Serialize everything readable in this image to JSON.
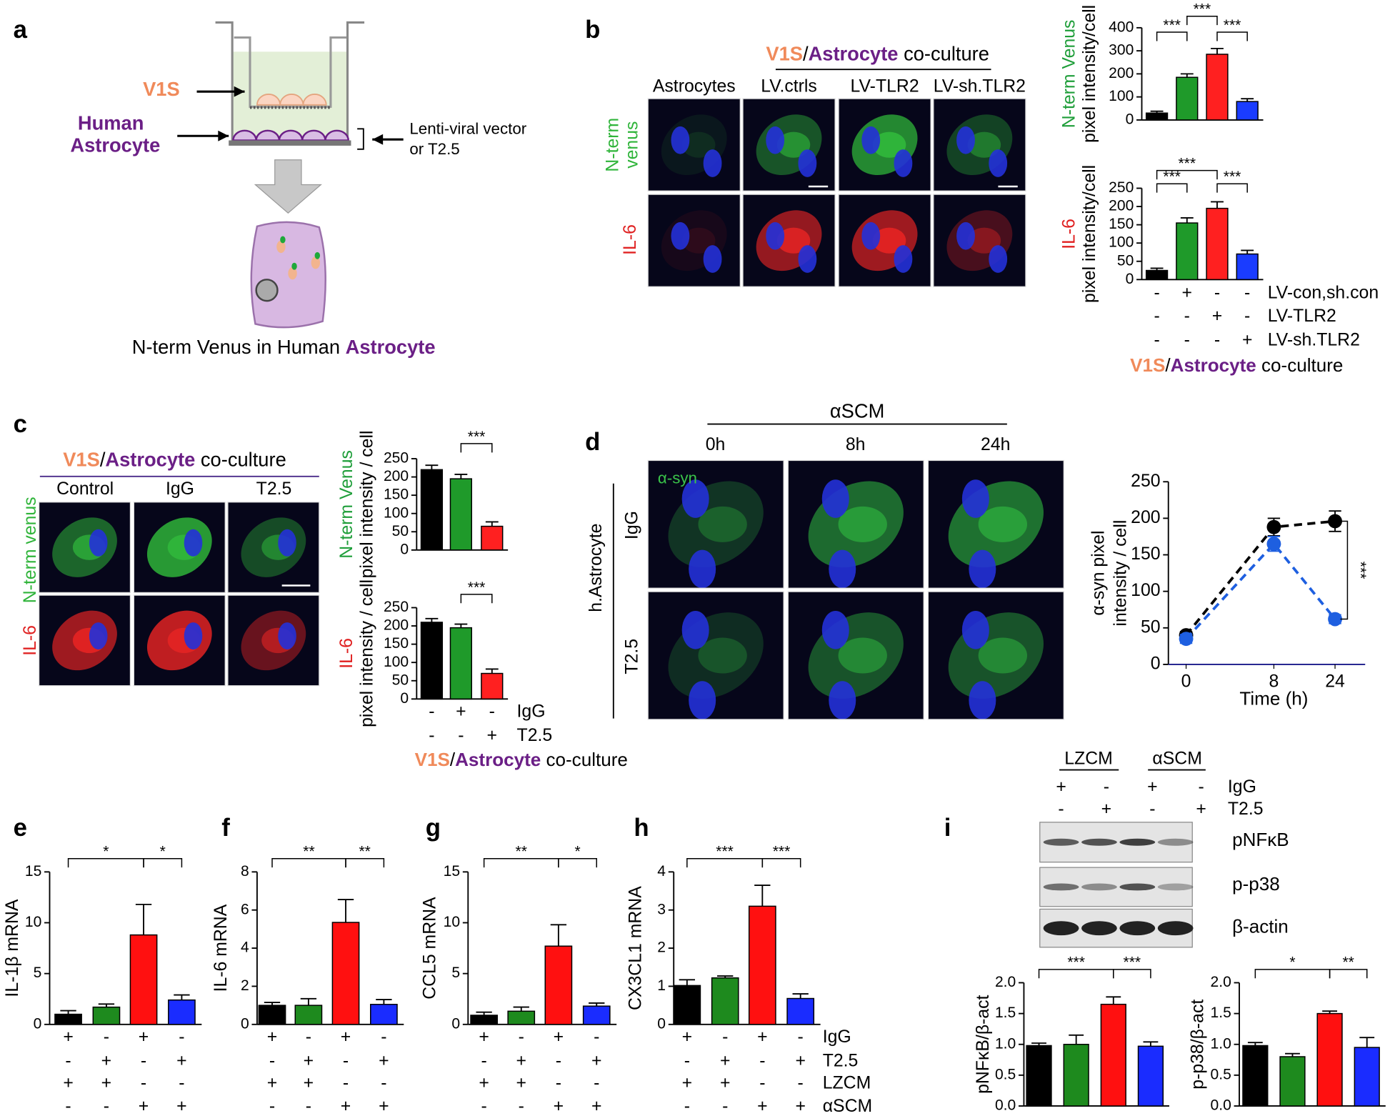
{
  "panel_labels": [
    "a",
    "b",
    "c",
    "d",
    "e",
    "f",
    "g",
    "h",
    "i"
  ],
  "diagram_a": {
    "top_label": "V1S",
    "bottom_label": [
      "Human",
      "Astrocyte"
    ],
    "side_label": [
      "Lenti-viral vector",
      "or T2.5"
    ],
    "caption": [
      "N-term Venus in Human ",
      "Astrocyte"
    ]
  },
  "images_b": {
    "header": [
      "V1S",
      "/",
      "Astrocyte",
      " co-culture"
    ],
    "columns": [
      "Astrocytes",
      "LV.ctrls",
      "LV-TLR2",
      "LV-sh.TLR2"
    ],
    "rows": [
      [
        "N-term",
        "venus"
      ],
      [
        "IL-6"
      ]
    ]
  },
  "conditions_b": {
    "rows": [
      {
        "label": "LV-con,sh.con",
        "signs": [
          "-",
          "+",
          "-",
          "-"
        ]
      },
      {
        "label": "LV-TLR2",
        "signs": [
          "-",
          "-",
          "+",
          "-"
        ]
      },
      {
        "label": "LV-sh.TLR2",
        "signs": [
          "-",
          "-",
          "-",
          "+"
        ]
      }
    ],
    "footer": [
      "V1S",
      "/",
      "Astrocyte",
      " co-culture"
    ]
  },
  "images_c": {
    "header": [
      "V1S",
      "/",
      "Astrocyte",
      " co-culture"
    ],
    "columns": [
      "Control",
      "IgG",
      "T2.5"
    ],
    "rows": [
      "N-term venus",
      "IL-6"
    ]
  },
  "conditions_c": {
    "rows": [
      {
        "label": "IgG",
        "signs": [
          "-",
          "+",
          "-"
        ]
      },
      {
        "label": "T2.5",
        "signs": [
          "-",
          "-",
          "+"
        ]
      }
    ],
    "footer": [
      "V1S",
      "/",
      "Astrocyte",
      " co-culture"
    ]
  },
  "images_d": {
    "header": "αSCM",
    "columns": [
      "0h",
      "8h",
      "24h"
    ],
    "rows": [
      "IgG",
      "T2.5"
    ],
    "side": "h.Astrocyte",
    "stain": "α-syn"
  },
  "conditions_eh": {
    "rows": [
      {
        "label": "IgG",
        "signs": [
          "+",
          "-",
          "+",
          "-"
        ]
      },
      {
        "label": "T2.5",
        "signs": [
          "-",
          "+",
          "-",
          "+"
        ]
      },
      {
        "label": "LZCM",
        "signs": [
          "+",
          "+",
          "-",
          "-"
        ]
      },
      {
        "label": "αSCM",
        "signs": [
          "-",
          "-",
          "+",
          "+"
        ]
      }
    ]
  },
  "blot_i": {
    "groups": [
      "LZCM",
      "αSCM"
    ],
    "conditions": [
      {
        "label": "IgG",
        "signs": [
          "+",
          "-",
          "+",
          "-"
        ]
      },
      {
        "label": "T2.5",
        "signs": [
          "-",
          "+",
          "-",
          "+"
        ]
      }
    ],
    "bands": [
      "pNFκB",
      "p-p38",
      "β-actin"
    ]
  },
  "chart_data": [
    {
      "type": "bar",
      "ylabel": [
        "N-term Venus",
        "pixel intensity/cell"
      ],
      "ylabel_colors": [
        "#1f9e3a",
        "#000000"
      ],
      "colors": [
        "#000000",
        "#1f9a2a",
        "#ff2020",
        "#1a3cff"
      ],
      "values": [
        30,
        185,
        285,
        80
      ],
      "errors": [
        8,
        15,
        25,
        12
      ],
      "ylim": [
        0,
        400
      ],
      "yticks": [
        0,
        100,
        200,
        300,
        400
      ],
      "annotations": [
        "***",
        "***",
        "***"
      ]
    },
    {
      "type": "bar",
      "ylabel": [
        "IL-6",
        "pixel intensity/cell"
      ],
      "ylabel_colors": [
        "#e02020",
        "#000000"
      ],
      "colors": [
        "#000000",
        "#1f9a2a",
        "#ff2020",
        "#1a3cff"
      ],
      "values": [
        25,
        155,
        195,
        70
      ],
      "errors": [
        6,
        14,
        18,
        10
      ],
      "ylim": [
        0,
        250
      ],
      "yticks": [
        0,
        50,
        100,
        150,
        200,
        250
      ],
      "annotations": [
        "***",
        "***",
        "***"
      ]
    },
    {
      "type": "bar",
      "ylabel": [
        "N-term Venus",
        "pixel intensity / cell"
      ],
      "ylabel_colors": [
        "#1f9e3a",
        "#000000"
      ],
      "colors": [
        "#000000",
        "#1f9a2a",
        "#ff2020"
      ],
      "values": [
        220,
        195,
        65
      ],
      "errors": [
        12,
        12,
        12
      ],
      "ylim": [
        0,
        250
      ],
      "yticks": [
        0,
        50,
        100,
        150,
        200,
        250
      ],
      "annotations": [
        "***"
      ]
    },
    {
      "type": "bar",
      "ylabel": [
        "IL-6",
        "pixel intensity / cell"
      ],
      "ylabel_colors": [
        "#e02020",
        "#000000"
      ],
      "colors": [
        "#000000",
        "#1f9a2a",
        "#ff2020"
      ],
      "values": [
        210,
        195,
        70
      ],
      "errors": [
        10,
        10,
        12
      ],
      "ylim": [
        0,
        250
      ],
      "yticks": [
        0,
        50,
        100,
        150,
        200,
        250
      ],
      "annotations": [
        "***"
      ]
    },
    {
      "type": "line",
      "categories": [
        "0",
        "8",
        "24"
      ],
      "xlabel": "Time (h)",
      "ylabel": [
        "α-syn pixel",
        "intensity / cell"
      ],
      "series": [
        {
          "color": "#000000",
          "values": [
            40,
            188,
            196
          ],
          "errors": [
            5,
            12,
            14
          ]
        },
        {
          "color": "#1e5fe0",
          "values": [
            35,
            165,
            62
          ],
          "errors": [
            6,
            10,
            6
          ]
        }
      ],
      "ylim": [
        0,
        250
      ],
      "yticks": [
        0,
        50,
        100,
        150,
        200,
        250
      ],
      "annotations": [
        "***"
      ]
    },
    {
      "type": "bar",
      "ylabel": [
        "IL-1β mRNA"
      ],
      "colors": [
        "#000000",
        "#1e8a1e",
        "#ff1010",
        "#1a2cff"
      ],
      "values": [
        1.0,
        1.7,
        8.8,
        2.4
      ],
      "errors": [
        0.35,
        0.3,
        3.0,
        0.5
      ],
      "ylim": [
        0,
        15
      ],
      "yticks": [
        0,
        5,
        10,
        15
      ],
      "annotations": [
        "*",
        "*"
      ]
    },
    {
      "type": "bar",
      "ylabel": [
        "IL-6 mRNA"
      ],
      "colors": [
        "#000000",
        "#1e8a1e",
        "#ff1010",
        "#1a2cff"
      ],
      "values": [
        1.0,
        1.0,
        5.35,
        1.05
      ],
      "errors": [
        0.15,
        0.35,
        1.2,
        0.25
      ],
      "ylim": [
        0,
        8
      ],
      "yticks": [
        0,
        2,
        4,
        6,
        8
      ],
      "annotations": [
        "**",
        "**"
      ]
    },
    {
      "type": "bar",
      "ylabel": [
        "CCL5 mRNA"
      ],
      "colors": [
        "#000000",
        "#1e8a1e",
        "#ff1010",
        "#1a2cff"
      ],
      "values": [
        0.9,
        1.3,
        7.7,
        1.8
      ],
      "errors": [
        0.3,
        0.4,
        2.1,
        0.3
      ],
      "ylim": [
        0,
        15
      ],
      "yticks": [
        0,
        5,
        10,
        15
      ],
      "annotations": [
        "**",
        "*"
      ]
    },
    {
      "type": "bar",
      "ylabel": [
        "CX3CL1 mRNA"
      ],
      "colors": [
        "#000000",
        "#1e8a1e",
        "#ff1010",
        "#1a2cff"
      ],
      "values": [
        1.02,
        1.22,
        3.1,
        0.68
      ],
      "errors": [
        0.15,
        0.05,
        0.55,
        0.12
      ],
      "ylim": [
        0,
        4
      ],
      "yticks": [
        0,
        1,
        2,
        3,
        4
      ],
      "annotations": [
        "***",
        "***"
      ]
    },
    {
      "type": "bar",
      "ylabel": [
        "pNFκB/β-act"
      ],
      "colors": [
        "#000000",
        "#1e8a1e",
        "#ff1010",
        "#1a2cff"
      ],
      "values": [
        0.98,
        1.0,
        1.65,
        0.97
      ],
      "errors": [
        0.04,
        0.15,
        0.12,
        0.07
      ],
      "ylim": [
        0,
        2
      ],
      "yticks": [
        {
          "value": 0,
          "label": "0.0"
        },
        {
          "value": 0.5,
          "label": "0.5"
        },
        {
          "value": 1,
          "label": "1.0"
        },
        {
          "value": 1.5,
          "label": "1.5"
        },
        {
          "value": 2,
          "label": "2.0"
        }
      ],
      "annotations": [
        "***",
        "***"
      ]
    },
    {
      "type": "bar",
      "ylabel": [
        "p-p38/β-act"
      ],
      "colors": [
        "#000000",
        "#1e8a1e",
        "#ff1010",
        "#1a2cff"
      ],
      "values": [
        0.98,
        0.8,
        1.5,
        0.95
      ],
      "errors": [
        0.05,
        0.05,
        0.04,
        0.16
      ],
      "ylim": [
        0,
        2
      ],
      "yticks": [
        {
          "value": 0,
          "label": "0.0"
        },
        {
          "value": 0.5,
          "label": "0.5"
        },
        {
          "value": 1,
          "label": "1.0"
        },
        {
          "value": 1.5,
          "label": "1.5"
        },
        {
          "value": 2,
          "label": "2.0"
        }
      ],
      "annotations": [
        "*",
        "**"
      ]
    }
  ]
}
